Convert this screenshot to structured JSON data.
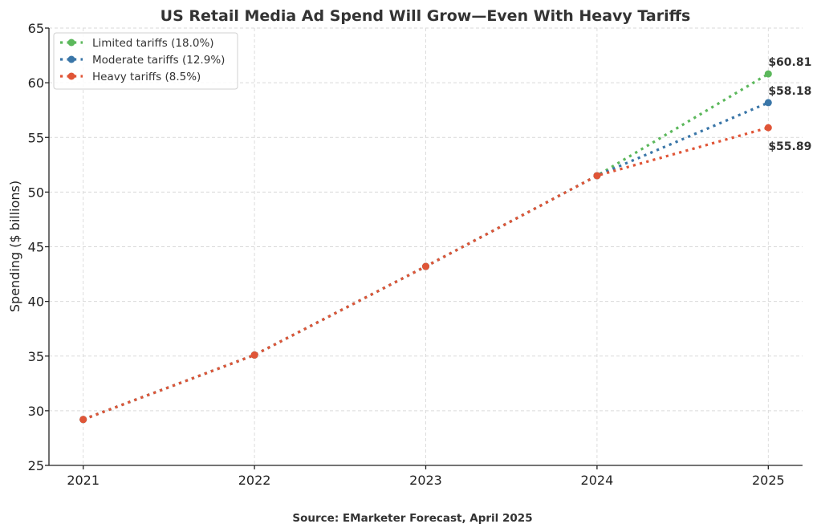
{
  "chart_data": {
    "type": "line",
    "title": "US Retail Media Ad Spend Will Grow—Even With Heavy Tariffs",
    "xlabel": "",
    "ylabel": "Spending ($ billions)",
    "source": "Source: EMarketer Forecast, April 2025",
    "x": [
      2021,
      2022,
      2023,
      2024,
      2025
    ],
    "x_tick_labels": [
      "2021",
      "2022",
      "2023",
      "2024",
      "2025"
    ],
    "y_ticks": [
      25,
      30,
      35,
      40,
      45,
      50,
      55,
      60,
      65
    ],
    "y_tick_labels": [
      "25",
      "30",
      "35",
      "40",
      "45",
      "50",
      "55",
      "60",
      "65"
    ],
    "ylim": [
      25,
      65
    ],
    "xlim": [
      2020.8,
      2025.2
    ],
    "grid": true,
    "legend_position": "top-left",
    "series": [
      {
        "name": "Limited tariffs (18.0%)",
        "color": "#5cb85c",
        "values": [
          29.2,
          35.1,
          43.2,
          51.5,
          60.81
        ],
        "end_label": "$60.81"
      },
      {
        "name": "Moderate tariffs (12.9%)",
        "color": "#3a76a8",
        "values": [
          29.2,
          35.1,
          43.2,
          51.5,
          58.18
        ],
        "end_label": "$58.18"
      },
      {
        "name": "Heavy tariffs (8.5%)",
        "color": "#e05537",
        "values": [
          29.2,
          35.1,
          43.2,
          51.5,
          55.89
        ],
        "end_label": "$55.89"
      }
    ]
  }
}
